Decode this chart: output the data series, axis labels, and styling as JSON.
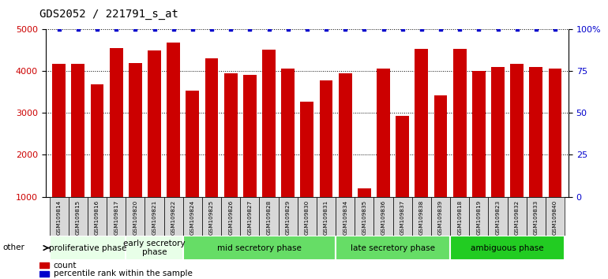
{
  "title": "GDS2052 / 221791_s_at",
  "samples": [
    "GSM109814",
    "GSM109815",
    "GSM109816",
    "GSM109817",
    "GSM109820",
    "GSM109821",
    "GSM109822",
    "GSM109824",
    "GSM109825",
    "GSM109826",
    "GSM109827",
    "GSM109828",
    "GSM109829",
    "GSM109830",
    "GSM109831",
    "GSM109834",
    "GSM109835",
    "GSM109836",
    "GSM109837",
    "GSM109838",
    "GSM109839",
    "GSM109818",
    "GSM109819",
    "GSM109823",
    "GSM109832",
    "GSM109833",
    "GSM109840"
  ],
  "counts": [
    4170,
    4170,
    3680,
    4560,
    4200,
    4500,
    4680,
    3540,
    4300,
    3950,
    3920,
    4520,
    4060,
    3280,
    3780,
    3950,
    1200,
    4060,
    2930,
    4530,
    3430,
    4530,
    4000,
    4100,
    4170,
    4100,
    4060
  ],
  "percentiles": [
    100,
    100,
    100,
    100,
    100,
    100,
    100,
    100,
    100,
    100,
    100,
    100,
    100,
    100,
    100,
    100,
    100,
    100,
    100,
    100,
    100,
    100,
    100,
    100,
    100,
    100,
    100
  ],
  "phases": [
    {
      "label": "proliferative phase",
      "start": 0,
      "end": 4,
      "color": "#e8ffe8"
    },
    {
      "label": "early secretory\nphase",
      "start": 4,
      "end": 7,
      "color": "#e8ffe8"
    },
    {
      "label": "mid secretory phase",
      "start": 7,
      "end": 15,
      "color": "#66dd66"
    },
    {
      "label": "late secretory phase",
      "start": 15,
      "end": 21,
      "color": "#66dd66"
    },
    {
      "label": "ambiguous phase",
      "start": 21,
      "end": 27,
      "color": "#22cc22"
    }
  ],
  "bar_color": "#cc0000",
  "dot_color": "#0000cc",
  "ylim_left": [
    1000,
    5000
  ],
  "ylim_right": [
    0,
    100
  ],
  "yticks_left": [
    1000,
    2000,
    3000,
    4000,
    5000
  ],
  "yticks_right": [
    0,
    25,
    50,
    75,
    100
  ],
  "ytick_labels_right": [
    "0",
    "25",
    "50",
    "75",
    "100%"
  ],
  "background_color": "#ffffff",
  "plot_bg_color": "#ffffff",
  "title_fontsize": 10,
  "tick_fontsize": 8,
  "phase_fontsize": 7.5
}
